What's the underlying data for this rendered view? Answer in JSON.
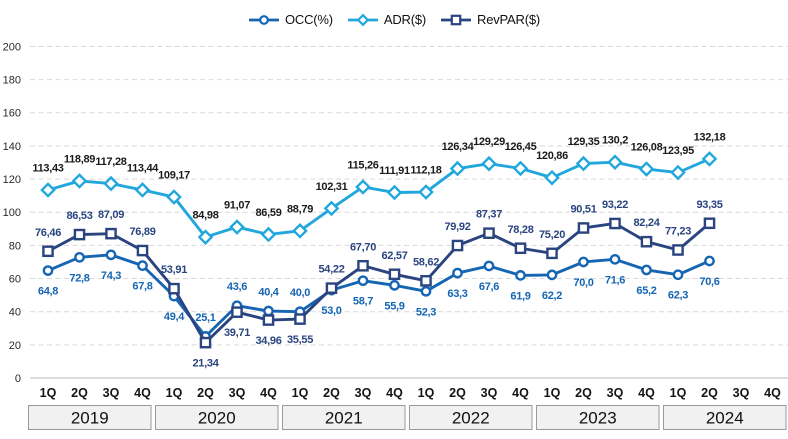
{
  "chart_data": {
    "type": "line",
    "title": "",
    "legend_position": "top-center",
    "grid": "horizontal-dashed",
    "background": "#ffffff",
    "ylim": [
      0,
      200
    ],
    "yticks": [
      0,
      20,
      40,
      60,
      80,
      100,
      120,
      140,
      160,
      180,
      200
    ],
    "x_categories": [
      "1Q",
      "2Q",
      "3Q",
      "4Q",
      "1Q",
      "2Q",
      "3Q",
      "4Q",
      "1Q",
      "2Q",
      "3Q",
      "4Q",
      "1Q",
      "2Q",
      "3Q",
      "4Q",
      "1Q",
      "2Q",
      "3Q",
      "4Q",
      "1Q",
      "2Q",
      "3Q",
      "4Q"
    ],
    "year_groups": [
      "2019",
      "2020",
      "2021",
      "2022",
      "2023",
      "2024"
    ],
    "series": [
      {
        "name": "OCC(%)",
        "marker": "circle",
        "color": "#1565b3",
        "label_color": "#1565b3",
        "values": [
          64.8,
          72.8,
          74.3,
          67.8,
          49.4,
          25.1,
          43.6,
          40.4,
          40.0,
          53.0,
          58.7,
          55.9,
          52.3,
          63.3,
          67.6,
          61.9,
          62.2,
          70.0,
          71.6,
          65.2,
          62.3,
          70.6,
          null,
          null
        ],
        "labels": [
          "64,8",
          "72,8",
          "74,3",
          "67,8",
          "49,4",
          "25,1",
          "43,6",
          "40,4",
          "40,0",
          "53,0",
          "58,7",
          "55,9",
          "52,3",
          "63,3",
          "67,6",
          "61,9",
          "62,2",
          "70,0",
          "71,6",
          "65,2",
          "62,3",
          "70,6",
          "",
          ""
        ]
      },
      {
        "name": "ADR($)",
        "marker": "diamond",
        "color": "#22a7dd",
        "label_color": "#1a1a1a",
        "values": [
          113.43,
          118.89,
          117.28,
          113.44,
          109.17,
          84.98,
          91.07,
          86.59,
          88.79,
          102.31,
          115.26,
          111.91,
          112.18,
          126.34,
          129.29,
          126.45,
          120.86,
          129.35,
          130.2,
          126.08,
          123.95,
          132.18,
          null,
          null
        ],
        "labels": [
          "113,43",
          "118,89",
          "117,28",
          "113,44",
          "109,17",
          "84,98",
          "91,07",
          "86,59",
          "88,79",
          "102,31",
          "115,26",
          "111,91",
          "112,18",
          "126,34",
          "129,29",
          "126,45",
          "120,86",
          "129,35",
          "130,2",
          "126,08",
          "123,95",
          "132,18",
          "",
          ""
        ]
      },
      {
        "name": "RevPAR($)",
        "marker": "square",
        "color": "#2a4480",
        "label_color": "#2a4480",
        "values": [
          76.46,
          86.53,
          87.09,
          76.89,
          53.91,
          21.34,
          39.71,
          34.96,
          35.55,
          54.22,
          67.7,
          62.57,
          58.62,
          79.92,
          87.37,
          78.28,
          75.2,
          90.51,
          93.22,
          82.24,
          77.23,
          93.35,
          null,
          null
        ],
        "labels": [
          "76,46",
          "86,53",
          "87,09",
          "76,89",
          "53,91",
          "21,34",
          "39,71",
          "34,96",
          "35,55",
          "54,22",
          "67,70",
          "62,57",
          "58,62",
          "79,92",
          "87,37",
          "78,28",
          "75,20",
          "90,51",
          "93,22",
          "82,24",
          "77,23",
          "93,35",
          "",
          ""
        ]
      }
    ]
  }
}
